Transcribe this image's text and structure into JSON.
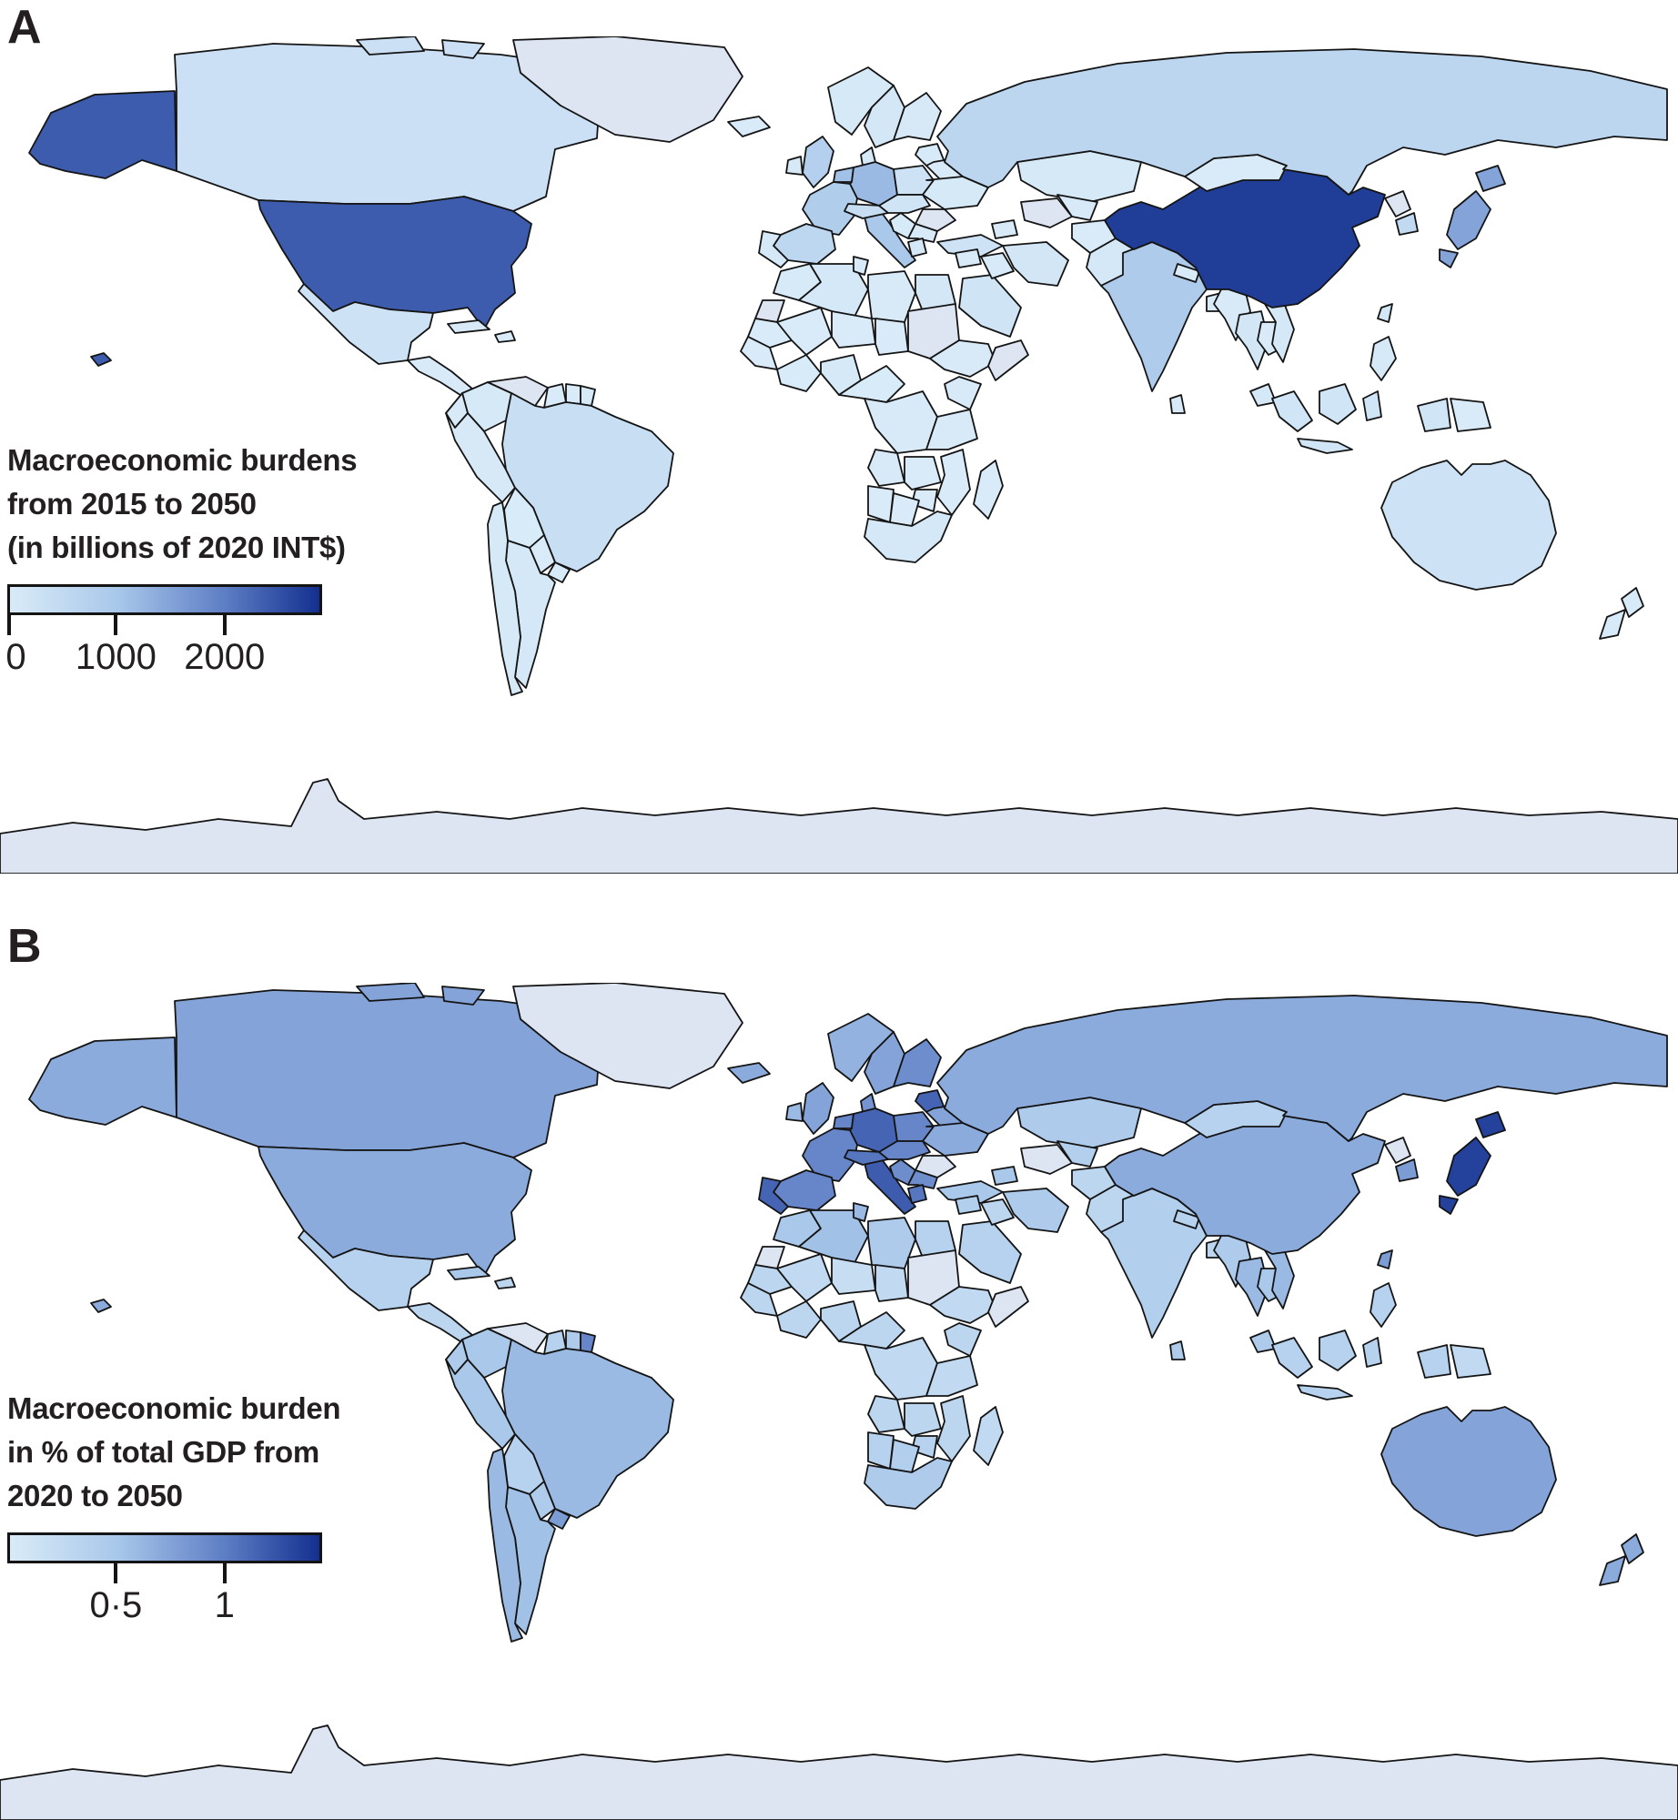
{
  "figure": {
    "panels": [
      {
        "label": "A",
        "legend_title_lines": [
          "Macroeconomic burdens",
          "from 2015 to 2050",
          "(in billions of 2020 INT$)"
        ],
        "colorbar": {
          "ticks": [
            {
              "label": "0",
              "pos": 0.005
            },
            {
              "label": "1000",
              "pos": 0.345
            },
            {
              "label": "2000",
              "pos": 0.69
            }
          ],
          "scale_max": 2900
        }
      },
      {
        "label": "B",
        "legend_title_lines": [
          "Macroeconomic burden",
          "in % of total GDP from",
          "2020 to 2050"
        ],
        "colorbar": {
          "ticks": [
            {
              "label": "0·5",
              "pos": 0.345
            },
            {
              "label": "1",
              "pos": 0.69
            }
          ],
          "scale_max": 1.45
        }
      }
    ]
  },
  "colors": {
    "gradient": [
      "#d9ebf8",
      "#a8c7ea",
      "#5c7cc4",
      "#13308f"
    ],
    "gradient_positions": [
      0,
      0.35,
      0.7,
      1
    ],
    "no_data": "#dde4f2",
    "border": "#141414",
    "ocean": "#ffffff",
    "text": "#231f20"
  },
  "chart_data": [
    {
      "type": "heatmap",
      "subtype": "choropleth-world-map",
      "panel": "A",
      "title": "Macroeconomic burdens from 2015 to 2050 (in billions of 2020 INT$)",
      "legend_ticks": [
        "0",
        "1000",
        "2000"
      ],
      "scale": {
        "min": 0,
        "max": 2900
      },
      "values": {
        "usa": 2400,
        "canada": 300,
        "greenland": null,
        "iceland": 10,
        "mexico": 250,
        "cuba": 20,
        "hispaniola": 10,
        "centralamerica": 25,
        "colombia": 60,
        "venezuela": null,
        "guyana": 5,
        "suriname": 5,
        "frguiana": 60,
        "ecuador": 25,
        "peru": 45,
        "brazil": 350,
        "bolivia": 12,
        "paraguay": 10,
        "uruguay": 18,
        "argentina": 90,
        "chile": 55,
        "norway": 70,
        "sweden": 110,
        "finland": 50,
        "uk": 750,
        "ireland": 50,
        "denmark": 60,
        "netherlands": 1100,
        "germany": 1200,
        "france": 850,
        "spain": 550,
        "portugal": 80,
        "italy": 1000,
        "switzerland": 400,
        "poland": 250,
        "czechia": 200,
        "baltics": 40,
        "belarus": 30,
        "ukraine": 60,
        "romania": null,
        "balkans": 40,
        "bulgaria": 25,
        "greece": 90,
        "turkey": 250,
        "morocco": 40,
        "wsahara": null,
        "algeria": 80,
        "tunisia": 20,
        "libya": 25,
        "egypt": 100,
        "mauritania": 5,
        "mali": 8,
        "niger": 6,
        "chad": 6,
        "sudan": null,
        "ethiopia": 20,
        "somalia": null,
        "senegal": 10,
        "guinea": 12,
        "nigeria": 70,
        "cameroon": 12,
        "drc": 20,
        "kenya": 20,
        "tanzania": 15,
        "angola": 20,
        "zambia": 10,
        "mozambique": 8,
        "zimbabwe": 8,
        "namibia": 6,
        "botswana": 8,
        "southafrica": 90,
        "madagascar": 6,
        "saudi": 200,
        "iraq": 40,
        "syria": 15,
        "iran": 150,
        "caucasus": 20,
        "kazakhstan": 60,
        "turkmenistan": null,
        "uzbekistan": 25,
        "afghanistan": 10,
        "pakistan": 80,
        "india": 900,
        "nepal": 10,
        "bangladesh": 40,
        "srilanka": 20,
        "myanmar": 25,
        "thailand": 140,
        "laos": 10,
        "vietnam": 90,
        "malaysia": 80,
        "china": 2750,
        "mongolia": 6,
        "russia": 600,
        "nkorea": null,
        "skorea": 500,
        "japan": 1500,
        "taiwan": 120,
        "philippines": 60,
        "indonesia": 180,
        "png": 5,
        "australia": 250,
        "nz": 40,
        "antarctica": null
      }
    },
    {
      "type": "heatmap",
      "subtype": "choropleth-world-map",
      "panel": "B",
      "title": "Macroeconomic burden in % of total GDP from 2020 to 2050",
      "legend_ticks": [
        "0·5",
        "1"
      ],
      "scale": {
        "min": 0,
        "max": 1.45
      },
      "values": {
        "usa": 0.7,
        "canada": 0.75,
        "greenland": null,
        "iceland": 0.7,
        "mexico": 0.35,
        "cuba": 0.5,
        "hispaniola": 0.3,
        "centralamerica": 0.3,
        "colombia": 0.5,
        "venezuela": null,
        "guyana": 0.35,
        "suriname": 0.45,
        "frguiana": 0.95,
        "ecuador": 0.45,
        "peru": 0.5,
        "brazil": 0.6,
        "bolivia": 0.35,
        "paraguay": 0.45,
        "uruguay": 0.8,
        "argentina": 0.55,
        "chile": 0.6,
        "norway": 0.65,
        "sweden": 0.75,
        "finland": 0.9,
        "uk": 0.75,
        "ireland": 0.6,
        "denmark": 0.85,
        "netherlands": 0.95,
        "germany": 1.15,
        "france": 0.95,
        "spain": 0.95,
        "portugal": 1.15,
        "italy": 1.2,
        "switzerland": 1.05,
        "poland": 0.95,
        "czechia": 0.95,
        "baltics": 1.15,
        "belarus": 0.75,
        "ukraine": 0.7,
        "romania": null,
        "balkans": 0.9,
        "bulgaria": 0.9,
        "greece": 1.05,
        "turkey": 0.5,
        "morocco": 0.5,
        "wsahara": null,
        "algeria": 0.55,
        "tunisia": 0.6,
        "libya": 0.45,
        "egypt": 0.35,
        "mauritania": 0.3,
        "mali": 0.25,
        "niger": 0.2,
        "chad": 0.25,
        "sudan": null,
        "ethiopia": 0.25,
        "somalia": null,
        "senegal": 0.3,
        "guinea": 0.3,
        "nigeria": 0.3,
        "cameroon": 0.3,
        "drc": 0.25,
        "kenya": 0.3,
        "tanzania": 0.25,
        "angola": 0.3,
        "zambia": 0.3,
        "mozambique": 0.3,
        "zimbabwe": 0.35,
        "namibia": 0.35,
        "botswana": 0.4,
        "southafrica": 0.45,
        "madagascar": 0.25,
        "saudi": 0.35,
        "iraq": 0.3,
        "syria": 0.4,
        "iran": 0.45,
        "caucasus": 0.5,
        "kazakhstan": 0.45,
        "turkmenistan": null,
        "uzbekistan": 0.4,
        "afghanistan": 0.3,
        "pakistan": 0.3,
        "india": 0.4,
        "nepal": 0.35,
        "bangladesh": 0.3,
        "srilanka": 0.45,
        "myanmar": 0.45,
        "thailand": 0.6,
        "laos": 0.5,
        "vietnam": 0.6,
        "malaysia": 0.45,
        "china": 0.7,
        "mongolia": 0.35,
        "russia": 0.7,
        "nkorea": null,
        "skorea": 0.8,
        "japan": 1.35,
        "taiwan": 0.8,
        "philippines": 0.35,
        "indonesia": 0.35,
        "png": 0.25,
        "australia": 0.75,
        "nz": 0.7,
        "antarctica": null
      }
    }
  ]
}
